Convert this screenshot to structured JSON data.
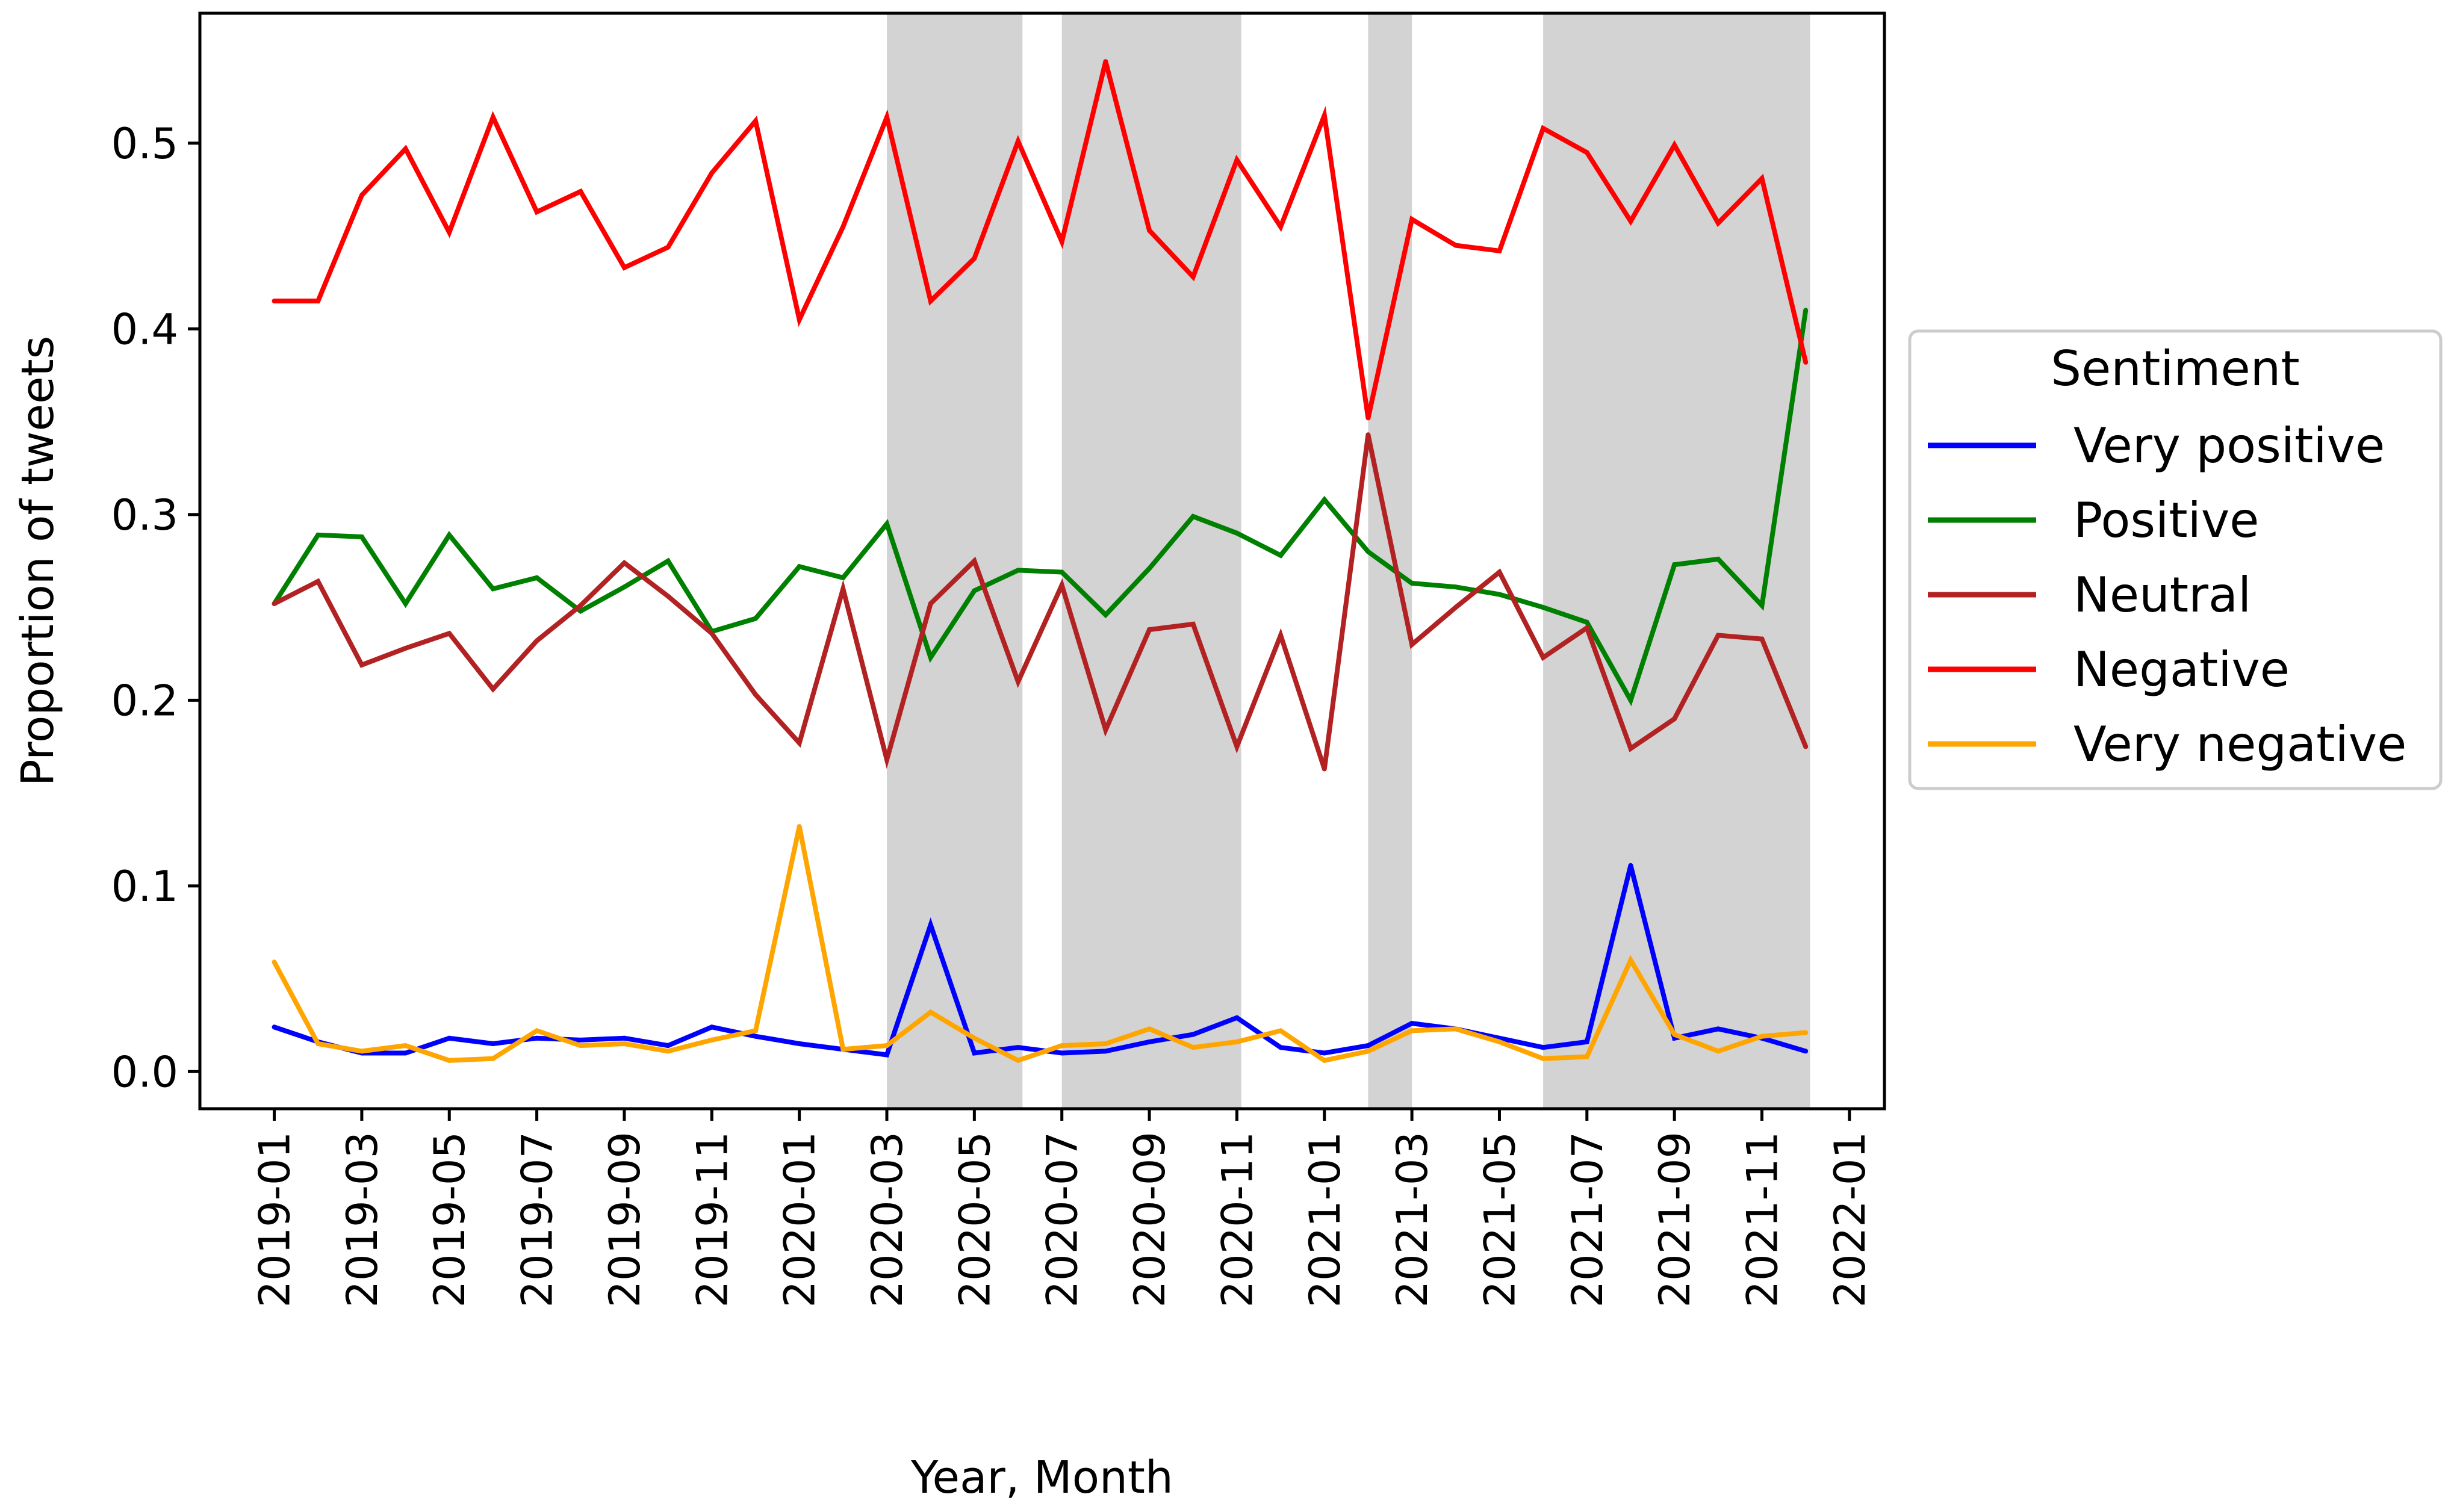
{
  "chart_data": {
    "type": "line",
    "title": "",
    "xlabel": "Year, Month",
    "ylabel": "Proportion of tweets",
    "ylim": [
      -0.02,
      0.57
    ],
    "xlim_months": [
      -1.7,
      36.8
    ],
    "yticks": [
      {
        "value": 0.0,
        "label": "0.0"
      },
      {
        "value": 0.1,
        "label": "0.1"
      },
      {
        "value": 0.2,
        "label": "0.2"
      },
      {
        "value": 0.3,
        "label": "0.3"
      },
      {
        "value": 0.4,
        "label": "0.4"
      },
      {
        "value": 0.5,
        "label": "0.5"
      }
    ],
    "xticks": [
      {
        "month_index": 0,
        "label": "2019-01"
      },
      {
        "month_index": 2,
        "label": "2019-03"
      },
      {
        "month_index": 4,
        "label": "2019-05"
      },
      {
        "month_index": 6,
        "label": "2019-07"
      },
      {
        "month_index": 8,
        "label": "2019-09"
      },
      {
        "month_index": 10,
        "label": "2019-11"
      },
      {
        "month_index": 12,
        "label": "2020-01"
      },
      {
        "month_index": 14,
        "label": "2020-03"
      },
      {
        "month_index": 16,
        "label": "2020-05"
      },
      {
        "month_index": 18,
        "label": "2020-07"
      },
      {
        "month_index": 20,
        "label": "2020-09"
      },
      {
        "month_index": 22,
        "label": "2020-11"
      },
      {
        "month_index": 24,
        "label": "2021-01"
      },
      {
        "month_index": 26,
        "label": "2021-03"
      },
      {
        "month_index": 28,
        "label": "2021-05"
      },
      {
        "month_index": 30,
        "label": "2021-07"
      },
      {
        "month_index": 32,
        "label": "2021-09"
      },
      {
        "month_index": 34,
        "label": "2021-11"
      },
      {
        "month_index": 36,
        "label": "2022-01"
      }
    ],
    "shaded_periods": [
      {
        "start": 14,
        "end": 17.1
      },
      {
        "start": 18,
        "end": 22.1
      },
      {
        "start": 25,
        "end": 26
      },
      {
        "start": 29,
        "end": 35.1
      }
    ],
    "shade_color": "#d3d3d3",
    "x": [
      "2019-01",
      "2019-02",
      "2019-03",
      "2019-04",
      "2019-05",
      "2019-06",
      "2019-07",
      "2019-08",
      "2019-09",
      "2019-10",
      "2019-11",
      "2019-12",
      "2020-01",
      "2020-02",
      "2020-03",
      "2020-04",
      "2020-05",
      "2020-06",
      "2020-07",
      "2020-08",
      "2020-09",
      "2020-10",
      "2020-11",
      "2020-12",
      "2021-01",
      "2021-02",
      "2021-03",
      "2021-04",
      "2021-05",
      "2021-06",
      "2021-07",
      "2021-08",
      "2021-09",
      "2021-10",
      "2021-11",
      "2021-12"
    ],
    "series": [
      {
        "name": "Very positive",
        "color": "#0000ff",
        "values": [
          0.024,
          0.016,
          0.01,
          0.01,
          0.018,
          0.015,
          0.018,
          0.017,
          0.018,
          0.014,
          0.024,
          0.019,
          0.015,
          0.012,
          0.009,
          0.079,
          0.01,
          0.013,
          0.01,
          0.011,
          0.016,
          0.02,
          0.029,
          0.013,
          0.01,
          0.014,
          0.026,
          0.023,
          0.018,
          0.013,
          0.016,
          0.111,
          0.018,
          0.023,
          0.018,
          0.011
        ]
      },
      {
        "name": "Positive",
        "color": "#008000",
        "values": [
          0.252,
          0.289,
          0.288,
          0.252,
          0.289,
          0.26,
          0.266,
          0.248,
          0.261,
          0.275,
          0.237,
          0.244,
          0.272,
          0.266,
          0.295,
          0.223,
          0.259,
          0.27,
          0.269,
          0.246,
          0.271,
          0.299,
          0.29,
          0.278,
          0.308,
          0.28,
          0.263,
          0.261,
          0.257,
          0.25,
          0.242,
          0.2,
          0.273,
          0.276,
          0.251,
          0.41
        ]
      },
      {
        "name": "Neutral",
        "color": "#b22222",
        "values": [
          0.252,
          0.264,
          0.219,
          0.228,
          0.236,
          0.206,
          0.232,
          0.251,
          0.274,
          0.256,
          0.236,
          0.203,
          0.177,
          0.26,
          0.168,
          0.252,
          0.275,
          0.21,
          0.262,
          0.184,
          0.238,
          0.241,
          0.175,
          0.235,
          0.163,
          0.343,
          0.23,
          0.25,
          0.269,
          0.223,
          0.239,
          0.174,
          0.19,
          0.235,
          0.233,
          0.175
        ]
      },
      {
        "name": "Negative",
        "color": "#ff0000",
        "values": [
          0.415,
          0.415,
          0.472,
          0.497,
          0.452,
          0.514,
          0.463,
          0.474,
          0.433,
          0.444,
          0.484,
          0.512,
          0.405,
          0.455,
          0.514,
          0.415,
          0.438,
          0.501,
          0.447,
          0.544,
          0.453,
          0.428,
          0.491,
          0.455,
          0.515,
          0.352,
          0.459,
          0.445,
          0.442,
          0.508,
          0.495,
          0.458,
          0.499,
          0.457,
          0.481,
          0.382
        ]
      },
      {
        "name": "Very negative",
        "color": "#ffa500",
        "values": [
          0.059,
          0.015,
          0.011,
          0.014,
          0.006,
          0.007,
          0.022,
          0.014,
          0.015,
          0.011,
          0.017,
          0.022,
          0.132,
          0.012,
          0.014,
          0.032,
          0.018,
          0.006,
          0.014,
          0.015,
          0.023,
          0.013,
          0.016,
          0.022,
          0.006,
          0.011,
          0.022,
          0.023,
          0.016,
          0.007,
          0.008,
          0.06,
          0.02,
          0.011,
          0.019,
          0.021
        ]
      }
    ],
    "legend": {
      "title": "Sentiment",
      "placement": "outside-right",
      "entries": [
        "Very positive",
        "Positive",
        "Neutral",
        "Negative",
        "Very negative"
      ]
    }
  }
}
